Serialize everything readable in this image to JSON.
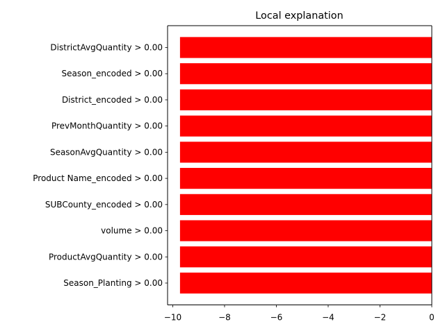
{
  "chart_data": {
    "type": "bar",
    "orientation": "horizontal",
    "title": "Local explanation",
    "xlabel": "",
    "ylabel": "",
    "xlim": [
      -10.2,
      0
    ],
    "xticks": [
      -10,
      -8,
      -6,
      -4,
      -2,
      0
    ],
    "xtick_labels": [
      "−10",
      "−8",
      "−6",
      "−4",
      "−2",
      "0"
    ],
    "grid": false,
    "bar_color": "#ff0000",
    "categories": [
      "DistrictAvgQuantity > 0.00",
      "Season_encoded > 0.00",
      "District_encoded > 0.00",
      "PrevMonthQuantity > 0.00",
      "SeasonAvgQuantity > 0.00",
      "Product Name_encoded > 0.00",
      "SUBCounty_encoded > 0.00",
      "volume > 0.00",
      "ProductAvgQuantity > 0.00",
      "Season_Planting > 0.00"
    ],
    "values": [
      -9.72,
      -9.72,
      -9.72,
      -9.72,
      -9.72,
      -9.72,
      -9.72,
      -9.72,
      -9.72,
      -9.72
    ]
  }
}
